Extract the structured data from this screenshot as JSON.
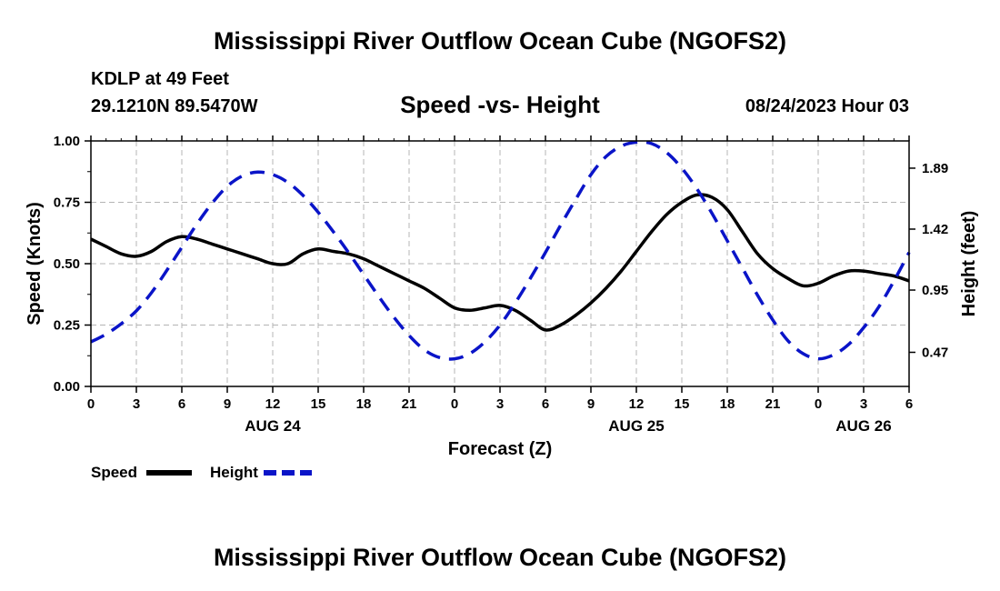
{
  "header": {
    "title": "Mississippi River Outflow Ocean Cube (NGOFS2)",
    "station": "KDLP at 49 Feet",
    "coordinates": "29.1210N  89.5470W",
    "subtitle": "Speed -vs- Height",
    "datetime": "08/24/2023 Hour 03"
  },
  "footer": {
    "title": "Mississippi River Outflow Ocean Cube (NGOFS2)"
  },
  "chart_data": {
    "type": "line",
    "title": "Speed -vs- Height",
    "xlabel": "Forecast (Z)",
    "ylabel": "Speed (Knots)",
    "y2label": "Height (feet)",
    "xlim": [
      0,
      54
    ],
    "ylim": [
      0,
      1
    ],
    "y2lim": [
      0.207,
      2.1
    ],
    "grid": true,
    "x_ticks": [
      0,
      3,
      6,
      9,
      12,
      15,
      18,
      21,
      24,
      27,
      30,
      33,
      36,
      39,
      42,
      45,
      48,
      51,
      54
    ],
    "x_tick_labels": [
      "0",
      "3",
      "6",
      "9",
      "12",
      "15",
      "18",
      "21",
      "0",
      "3",
      "6",
      "9",
      "12",
      "15",
      "18",
      "21",
      "0",
      "3",
      "6"
    ],
    "date_labels": [
      {
        "label": "AUG 24",
        "hour": 12
      },
      {
        "label": "AUG 25",
        "hour": 36
      },
      {
        "label": "AUG 26",
        "hour": 51
      }
    ],
    "y_ticks": [
      0,
      0.25,
      0.5,
      0.75,
      1.0
    ],
    "y_tick_labels": [
      "0.00",
      "0.25",
      "0.50",
      "0.75",
      "1.00"
    ],
    "y2_ticks": [
      0.47,
      0.95,
      1.42,
      1.89
    ],
    "y2_tick_labels": [
      "0.47",
      "0.95",
      "1.42",
      "1.89"
    ],
    "series": [
      {
        "name": "Speed",
        "axis": "left",
        "color": "#000000",
        "dash": "solid",
        "x": [
          0,
          1,
          2,
          3,
          4,
          5,
          6,
          7,
          8,
          9,
          10,
          11,
          12,
          13,
          14,
          15,
          16,
          17,
          18,
          19,
          20,
          21,
          22,
          23,
          24,
          25,
          26,
          27,
          28,
          29,
          30,
          31,
          32,
          33,
          34,
          35,
          36,
          37,
          38,
          39,
          40,
          41,
          42,
          43,
          44,
          45,
          46,
          47,
          48,
          49,
          50,
          51,
          52,
          53,
          54
        ],
        "values": [
          0.6,
          0.57,
          0.54,
          0.53,
          0.55,
          0.59,
          0.61,
          0.6,
          0.58,
          0.56,
          0.54,
          0.52,
          0.5,
          0.5,
          0.54,
          0.56,
          0.55,
          0.54,
          0.52,
          0.49,
          0.46,
          0.43,
          0.4,
          0.36,
          0.32,
          0.31,
          0.32,
          0.33,
          0.31,
          0.27,
          0.23,
          0.25,
          0.29,
          0.34,
          0.4,
          0.47,
          0.55,
          0.63,
          0.7,
          0.75,
          0.78,
          0.77,
          0.72,
          0.63,
          0.54,
          0.48,
          0.44,
          0.41,
          0.42,
          0.45,
          0.47,
          0.47,
          0.46,
          0.45,
          0.43
        ]
      },
      {
        "name": "Height",
        "axis": "right",
        "color": "#0a14c8",
        "dash": "dashed",
        "x": [
          0,
          1,
          2,
          3,
          4,
          5,
          6,
          7,
          8,
          9,
          10,
          11,
          12,
          13,
          14,
          15,
          16,
          17,
          18,
          19,
          20,
          21,
          22,
          23,
          24,
          25,
          26,
          27,
          28,
          29,
          30,
          31,
          32,
          33,
          34,
          35,
          36,
          37,
          38,
          39,
          40,
          41,
          42,
          43,
          44,
          45,
          46,
          47,
          48,
          49,
          50,
          51,
          52,
          53,
          54
        ],
        "values": [
          0.55,
          0.61,
          0.69,
          0.79,
          0.93,
          1.1,
          1.28,
          1.46,
          1.62,
          1.75,
          1.83,
          1.86,
          1.84,
          1.78,
          1.68,
          1.55,
          1.4,
          1.24,
          1.07,
          0.9,
          0.74,
          0.6,
          0.49,
          0.43,
          0.42,
          0.46,
          0.55,
          0.68,
          0.85,
          1.04,
          1.24,
          1.45,
          1.65,
          1.84,
          1.98,
          2.06,
          2.09,
          2.08,
          2.01,
          1.89,
          1.73,
          1.54,
          1.33,
          1.12,
          0.91,
          0.72,
          0.56,
          0.46,
          0.42,
          0.45,
          0.53,
          0.66,
          0.82,
          1.02,
          1.24
        ]
      }
    ],
    "legend": [
      {
        "name": "Speed",
        "color": "#000000",
        "dash": "solid"
      },
      {
        "name": "Height",
        "color": "#0a14c8",
        "dash": "dashed"
      }
    ],
    "legend_position": "bottom-left"
  }
}
